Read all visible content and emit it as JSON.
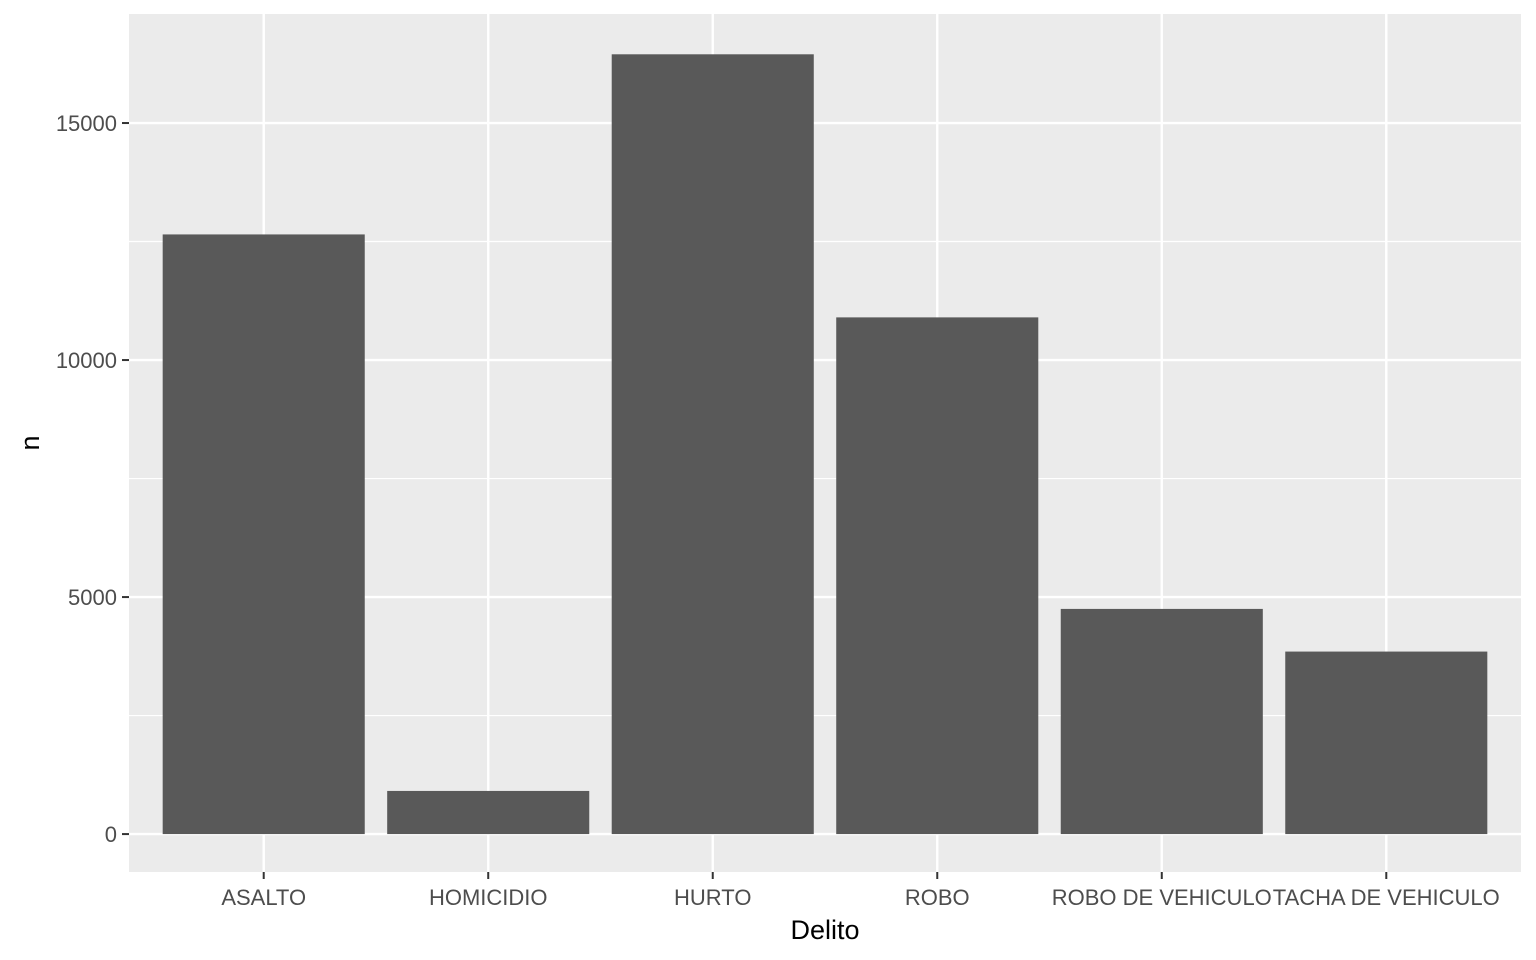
{
  "chart_data": {
    "type": "bar",
    "title": "",
    "xlabel": "Delito",
    "ylabel": "n",
    "categories": [
      "ASALTO",
      "HOMICIDIO",
      "HURTO",
      "ROBO",
      "ROBO DE VEHICULO",
      "TACHA DE VEHICULO"
    ],
    "values": [
      12650,
      910,
      16450,
      10900,
      4750,
      3850
    ],
    "ylim": [
      -800,
      17300
    ],
    "y_ticks": [
      0,
      5000,
      10000,
      15000
    ],
    "y_tick_labels": [
      "0",
      "5000",
      "10000",
      "15000"
    ],
    "grid": true,
    "legend": "none",
    "colors": {
      "panel_background": "#ebebeb",
      "grid_line": "#ffffff",
      "bar_fill": "#595959",
      "tick_text": "#4d4d4d",
      "axis_title": "#000000"
    }
  }
}
